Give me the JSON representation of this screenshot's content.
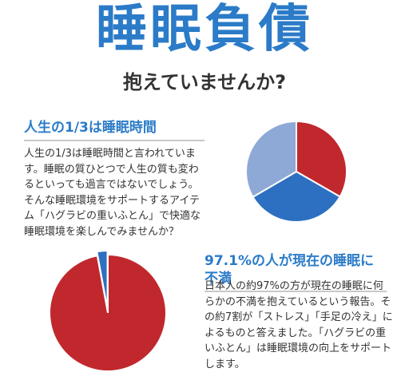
{
  "title": "睡眠負債",
  "subtitle": "抱えていませんか?",
  "section1": {
    "heading": "人生の1/3は睡眠時間",
    "text": "人生の1/3は睡眠時間と言われています。睡眠の質ひとつで人生の質も変わるといっても過言ではないでしょう。そんな睡眠環境をサポートするアイテム「ハグラビの重いふとん」で快適な睡眠環境を楽しんでみませんか？"
  },
  "section2": {
    "heading": "97.1%の人が現在の睡眠に不満",
    "text": "日本人の約97%の方が現在の睡眠に何らかの不満を抱えているという報告。その約7割が「ストレス」「手足の冷え」によるものと答えました。「ハグラビの重いふとん」は睡眠環境の向上をサポートします。"
  },
  "colors": {
    "title": "#2b7bc8",
    "red": "#c0282d",
    "blue": "#2d6fc1",
    "light_blue": "#8fa9d6"
  },
  "chart_data": [
    {
      "type": "pie",
      "title": "",
      "slices": [
        {
          "label": "",
          "value": 33.3,
          "color": "#c0282d"
        },
        {
          "label": "",
          "value": 33.3,
          "color": "#2d6fc1"
        },
        {
          "label": "",
          "value": 33.4,
          "color": "#8fa9d6"
        }
      ]
    },
    {
      "type": "pie",
      "title": "",
      "slices": [
        {
          "label": "",
          "value": 97.1,
          "color": "#c0282d"
        },
        {
          "label": "",
          "value": 2.9,
          "color": "#2d6fc1"
        }
      ]
    }
  ]
}
